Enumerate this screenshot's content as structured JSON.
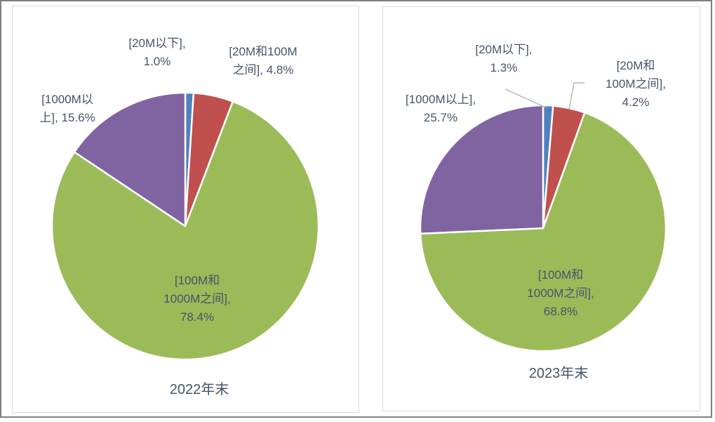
{
  "page": {
    "background": "#FFFFFF",
    "frame_border_color": "#7F7F7F",
    "panel_border_color": "#D9D9D9",
    "label_color": "#44546A",
    "leader_line_color": "#A6A6A6",
    "slice_separator_color": "#FFFFFF"
  },
  "chart_data": [
    {
      "type": "pie",
      "title": "2022年末",
      "unit": "%",
      "start_angle_deg": 0,
      "direction": "clockwise",
      "legend": "none",
      "categories": [
        "20M以下",
        "20M和100M之间",
        "100M和1000M之间",
        "1000M以上"
      ],
      "values": [
        1.0,
        4.8,
        78.4,
        15.6
      ],
      "colors": [
        "#4F81BD",
        "#C0504D",
        "#9BBB59",
        "#8064A2"
      ],
      "labels": [
        {
          "lines": [
            "[20M以下],",
            "1.0%"
          ]
        },
        {
          "lines": [
            "[20M和100M",
            "之间], 4.8%"
          ]
        },
        {
          "lines": [
            "[100M和",
            "1000M之间],",
            "78.4%"
          ]
        },
        {
          "lines": [
            "[1000M以",
            "上], 15.6%"
          ]
        }
      ]
    },
    {
      "type": "pie",
      "title": "2023年末",
      "unit": "%",
      "start_angle_deg": 0,
      "direction": "clockwise",
      "legend": "none",
      "categories": [
        "20M以下",
        "20M和100M之间",
        "100M和1000M之间",
        "1000M以上"
      ],
      "values": [
        1.3,
        4.2,
        68.8,
        25.7
      ],
      "colors": [
        "#4F81BD",
        "#C0504D",
        "#9BBB59",
        "#8064A2"
      ],
      "labels": [
        {
          "lines": [
            "[20M以下],",
            "1.3%"
          ]
        },
        {
          "lines": [
            "[20M和",
            "100M之间],",
            "4.2%"
          ]
        },
        {
          "lines": [
            "[100M和",
            "1000M之间],",
            "68.8%"
          ]
        },
        {
          "lines": [
            "[1000M以上],",
            "25.7%"
          ]
        }
      ]
    }
  ]
}
